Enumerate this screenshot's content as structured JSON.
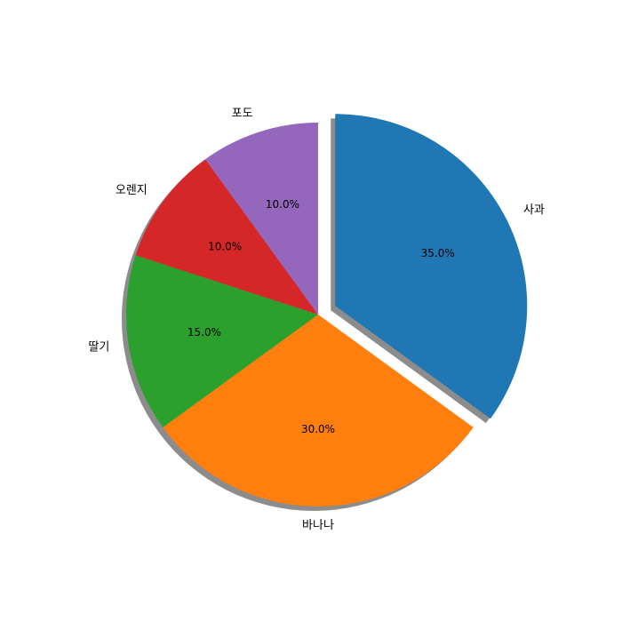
{
  "chart_data": {
    "type": "pie",
    "categories": [
      "사과",
      "바나나",
      "딸기",
      "오렌지",
      "포도"
    ],
    "values": [
      35,
      30,
      15,
      10,
      10
    ],
    "value_labels": [
      "35.0%",
      "30.0%",
      "15.0%",
      "10.0%",
      "10.0%"
    ],
    "colors": [
      "#1f77b4",
      "#ff7f0e",
      "#2ca02c",
      "#d62728",
      "#9467bd"
    ],
    "explode": [
      0.1,
      0,
      0,
      0,
      0
    ],
    "shadow": true
  }
}
